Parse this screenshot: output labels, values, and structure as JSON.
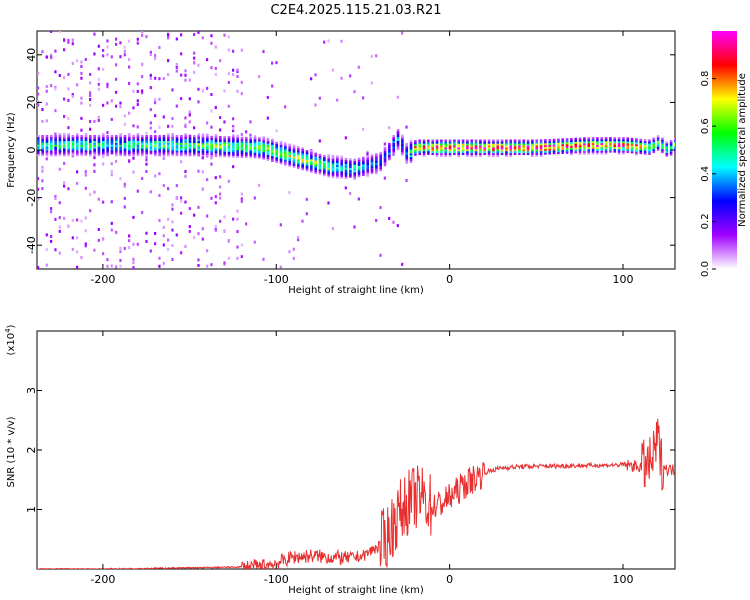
{
  "title": "C2E4.2025.115.21.03.R21",
  "chart_data": [
    {
      "type": "heatmap",
      "xlabel": "Height of straight line (km)",
      "ylabel": "Frequency (Hz)",
      "xlim": [
        -238,
        130
      ],
      "ylim": [
        -50,
        50
      ],
      "xticks": [
        -200,
        -100,
        0,
        100
      ],
      "yticks": [
        -40,
        -20,
        0,
        20,
        40
      ],
      "xtick_labels": [
        "-200",
        "-100",
        "0",
        "100"
      ],
      "ytick_labels": [
        "-40",
        "-20",
        "0",
        "20",
        "40"
      ],
      "colorbar": {
        "label": "Normalized spectral amplitude",
        "range": [
          0,
          1
        ],
        "ticks": [
          0,
          0.2,
          0.4,
          0.6,
          0.8
        ],
        "tick_labels": [
          "0.0",
          "0.2",
          "0.4",
          "0.6",
          "0.8"
        ],
        "colors": [
          "#ffffff",
          "#a000ff",
          "#0000ff",
          "#00ffff",
          "#00ff00",
          "#ffff00",
          "#ff0000",
          "#ff00ff"
        ]
      },
      "ridge": {
        "x": [
          -238,
          -200,
          -150,
          -110,
          -90,
          -70,
          -55,
          -40,
          -30,
          -25,
          -20,
          0,
          50,
          80,
          100,
          115,
          120,
          125,
          130
        ],
        "freq": [
          2,
          2,
          2,
          1,
          -3,
          -7,
          -8,
          -5,
          5,
          -2,
          1,
          1,
          1,
          2,
          2,
          1,
          3,
          0,
          2
        ],
        "amplitude": [
          0.45,
          0.45,
          0.5,
          0.55,
          0.6,
          0.5,
          0.4,
          0.3,
          0.35,
          0.3,
          0.8,
          0.9,
          0.9,
          0.85,
          0.85,
          0.7,
          0.6,
          0.5,
          0.6
        ]
      },
      "grid": false
    },
    {
      "type": "line",
      "xlabel": "Height of straight line (km)",
      "ylabel": "SNR (10 * v/v)",
      "y_multiplier": "(x10^4)",
      "y_multiplier_base": "(x10",
      "y_multiplier_exp": "4",
      "y_multiplier_close": ")",
      "xlim": [
        -238,
        130
      ],
      "ylim": [
        0,
        4
      ],
      "xticks": [
        -200,
        -100,
        0,
        100
      ],
      "yticks": [
        1,
        2,
        3
      ],
      "xtick_labels": [
        "-200",
        "-100",
        "0",
        "100"
      ],
      "ytick_labels": [
        "1",
        "2",
        "3"
      ],
      "color": "#e83030",
      "series": [
        {
          "x": [
            -238,
            -200,
            -150,
            -110,
            -100,
            -90,
            -80,
            -70,
            -60,
            -50,
            -40,
            -35,
            -30,
            -25,
            -20,
            -15,
            -10,
            -5,
            0,
            10,
            20,
            30,
            40,
            60,
            80,
            100,
            110,
            115,
            118,
            120,
            122,
            125,
            130
          ],
          "y": [
            0.0,
            0.0,
            0.02,
            0.04,
            0.1,
            0.2,
            0.22,
            0.2,
            0.18,
            0.22,
            0.4,
            0.6,
            0.9,
            1.1,
            1.2,
            1.2,
            1.05,
            1.1,
            1.2,
            1.45,
            1.62,
            1.7,
            1.72,
            1.73,
            1.74,
            1.75,
            1.72,
            1.75,
            1.9,
            2.2,
            1.8,
            1.68,
            1.66
          ]
        }
      ],
      "grid": false
    }
  ]
}
